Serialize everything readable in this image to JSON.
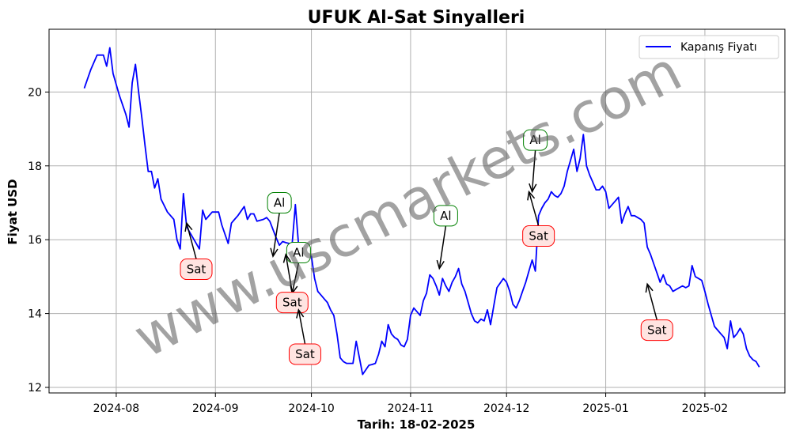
{
  "chart_data": {
    "type": "line",
    "title": "UFUK Al-Sat Sinyalleri",
    "xlabel": "Tarih: 18-02-2025",
    "ylabel": "Fiyat USD",
    "ylim": [
      11.85,
      21.7
    ],
    "yticks": [
      12,
      14,
      16,
      18,
      20
    ],
    "xlim": [
      "2024-07-11",
      "2025-02-26"
    ],
    "xticks": [
      "2024-08",
      "2024-09",
      "2024-10",
      "2024-11",
      "2024-12",
      "2025-01",
      "2025-02"
    ],
    "grid": true,
    "legend_position": "top-right",
    "colors": {
      "line": "#0000ff",
      "buy": "#008000",
      "sell": "#ff0000",
      "buy_fill": "#ffffff",
      "sell_fill": "#ffe4e1",
      "grid": "#b0b0b0"
    },
    "series": [
      {
        "name": "Kapanış Fiyatı",
        "x": [
          "2024-07-22",
          "2024-07-24",
          "2024-07-26",
          "2024-07-28",
          "2024-07-29",
          "2024-07-30",
          "2024-07-31",
          "2024-08-02",
          "2024-08-04",
          "2024-08-05",
          "2024-08-06",
          "2024-08-07",
          "2024-08-08",
          "2024-08-09",
          "2024-08-10",
          "2024-08-11",
          "2024-08-12",
          "2024-08-13",
          "2024-08-14",
          "2024-08-15",
          "2024-08-17",
          "2024-08-19",
          "2024-08-20",
          "2024-08-21",
          "2024-08-22",
          "2024-08-23",
          "2024-08-24",
          "2024-08-26",
          "2024-08-27",
          "2024-08-28",
          "2024-08-29",
          "2024-08-31",
          "2024-09-02",
          "2024-09-03",
          "2024-09-05",
          "2024-09-06",
          "2024-09-07",
          "2024-09-08",
          "2024-09-10",
          "2024-09-11",
          "2024-09-12",
          "2024-09-13",
          "2024-09-14",
          "2024-09-16",
          "2024-09-17",
          "2024-09-18",
          "2024-09-20",
          "2024-09-21",
          "2024-09-22",
          "2024-09-23",
          "2024-09-24",
          "2024-09-25",
          "2024-09-26",
          "2024-09-27",
          "2024-09-28",
          "2024-09-29",
          "2024-09-30",
          "2024-10-01",
          "2024-10-02",
          "2024-10-03",
          "2024-10-04",
          "2024-10-05",
          "2024-10-06",
          "2024-10-07",
          "2024-10-08",
          "2024-10-09",
          "2024-10-10",
          "2024-10-11",
          "2024-10-12",
          "2024-10-14",
          "2024-10-15",
          "2024-10-17",
          "2024-10-19",
          "2024-10-20",
          "2024-10-21",
          "2024-10-22",
          "2024-10-23",
          "2024-10-24",
          "2024-10-25",
          "2024-10-26",
          "2024-10-27",
          "2024-10-28",
          "2024-10-29",
          "2024-10-30",
          "2024-10-31",
          "2024-11-01",
          "2024-11-02",
          "2024-11-04",
          "2024-11-05",
          "2024-11-06",
          "2024-11-07",
          "2024-11-08",
          "2024-11-09",
          "2024-11-10",
          "2024-11-11",
          "2024-11-12",
          "2024-11-13",
          "2024-11-14",
          "2024-11-15",
          "2024-11-16",
          "2024-11-17",
          "2024-11-18",
          "2024-11-19",
          "2024-11-20",
          "2024-11-21",
          "2024-11-22",
          "2024-11-23",
          "2024-11-24",
          "2024-11-25",
          "2024-11-26",
          "2024-11-27",
          "2024-11-28",
          "2024-11-30",
          "2024-12-01",
          "2024-12-02",
          "2024-12-03",
          "2024-12-04",
          "2024-12-05",
          "2024-12-06",
          "2024-12-07",
          "2024-12-08",
          "2024-12-09",
          "2024-12-10",
          "2024-12-11",
          "2024-12-12",
          "2024-12-13",
          "2024-12-14",
          "2024-12-15",
          "2024-12-16",
          "2024-12-17",
          "2024-12-18",
          "2024-12-19",
          "2024-12-20",
          "2024-12-21",
          "2024-12-22",
          "2024-12-23",
          "2024-12-24",
          "2024-12-25",
          "2024-12-26",
          "2024-12-27",
          "2024-12-28",
          "2024-12-29",
          "2024-12-30",
          "2024-12-31",
          "2025-01-01",
          "2025-01-02",
          "2025-01-03",
          "2025-01-04",
          "2025-01-05",
          "2025-01-06",
          "2025-01-07",
          "2025-01-08",
          "2025-01-09",
          "2025-01-10",
          "2025-01-11",
          "2025-01-12",
          "2025-01-13",
          "2025-01-14",
          "2025-01-15",
          "2025-01-16",
          "2025-01-17",
          "2025-01-18",
          "2025-01-19",
          "2025-01-20",
          "2025-01-21",
          "2025-01-22",
          "2025-01-23",
          "2025-01-24",
          "2025-01-25",
          "2025-01-26",
          "2025-01-27",
          "2025-01-28",
          "2025-01-29",
          "2025-01-30",
          "2025-01-31",
          "2025-02-01",
          "2025-02-02",
          "2025-02-03",
          "2025-02-04",
          "2025-02-05",
          "2025-02-06",
          "2025-02-07",
          "2025-02-08",
          "2025-02-09",
          "2025-02-10",
          "2025-02-11",
          "2025-02-12",
          "2025-02-13",
          "2025-02-14",
          "2025-02-15",
          "2025-02-16",
          "2025-02-17",
          "2025-02-18"
        ],
        "values": [
          20.1,
          20.6,
          21.0,
          21.0,
          20.7,
          21.2,
          20.5,
          19.9,
          19.4,
          19.05,
          20.25,
          20.75,
          20.0,
          19.3,
          18.55,
          17.85,
          17.85,
          17.4,
          17.65,
          17.1,
          16.75,
          16.55,
          16.0,
          15.75,
          17.25,
          16.35,
          16.2,
          15.9,
          15.75,
          16.8,
          16.55,
          16.75,
          16.75,
          16.4,
          15.9,
          16.45,
          16.55,
          16.65,
          16.9,
          16.55,
          16.7,
          16.7,
          16.5,
          16.55,
          16.6,
          16.5,
          16.05,
          15.85,
          15.95,
          15.92,
          15.9,
          15.9,
          16.95,
          15.85,
          15.55,
          15.55,
          15.55,
          15.55,
          14.95,
          14.6,
          14.5,
          14.4,
          14.3,
          14.1,
          13.95,
          13.45,
          12.8,
          12.7,
          12.65,
          12.65,
          13.25,
          12.35,
          12.6,
          12.62,
          12.65,
          12.9,
          13.25,
          13.1,
          13.7,
          13.45,
          13.35,
          13.3,
          13.15,
          13.1,
          13.3,
          13.95,
          14.15,
          13.95,
          14.35,
          14.55,
          15.05,
          14.95,
          14.75,
          14.5,
          14.95,
          14.75,
          14.6,
          14.85,
          15.0,
          15.22,
          14.8,
          14.6,
          14.3,
          14.0,
          13.8,
          13.75,
          13.85,
          13.8,
          14.1,
          13.7,
          14.2,
          14.7,
          14.95,
          14.85,
          14.6,
          14.25,
          14.15,
          14.35,
          14.6,
          14.85,
          15.15,
          15.45,
          15.15,
          16.65,
          16.85,
          17.0,
          17.1,
          17.3,
          17.2,
          17.15,
          17.25,
          17.45,
          17.85,
          18.15,
          18.45,
          17.85,
          18.2,
          18.85,
          18.0,
          17.75,
          17.55,
          17.35,
          17.35,
          17.45,
          17.3,
          16.85,
          16.95,
          17.05,
          17.15,
          16.45,
          16.7,
          16.9,
          16.65,
          16.65,
          16.6,
          16.55,
          16.45,
          15.8,
          15.6,
          15.35,
          15.1,
          14.85,
          15.05,
          14.8,
          14.75,
          14.6,
          14.65,
          14.7,
          14.75,
          14.7,
          14.75,
          15.3,
          15.0,
          14.95,
          14.9,
          14.6,
          14.25,
          13.95,
          13.65,
          13.55,
          13.45,
          13.35,
          13.05,
          13.8,
          13.35,
          13.45,
          13.6,
          13.45,
          13.05,
          12.85,
          12.75,
          12.7,
          12.55
        ]
      }
    ],
    "signals": [
      {
        "type": "sell",
        "label": "Sat",
        "x": "2024-08-23",
        "y": 16.45,
        "text_x": "2024-08-26",
        "text_y": 15.2
      },
      {
        "type": "buy",
        "label": "Al",
        "x": "2024-09-19",
        "y": 15.55,
        "text_x": "2024-09-21",
        "text_y": 17.0
      },
      {
        "type": "buy",
        "label": "Al",
        "x": "2024-09-25",
        "y": 14.55,
        "text_x": "2024-09-27",
        "text_y": 15.65
      },
      {
        "type": "sell",
        "label": "Sat",
        "x": "2024-09-23",
        "y": 15.6,
        "text_x": "2024-09-25",
        "text_y": 14.3
      },
      {
        "type": "sell",
        "label": "Sat",
        "x": "2024-09-27",
        "y": 14.1,
        "text_x": "2024-09-29",
        "text_y": 12.9
      },
      {
        "type": "buy",
        "label": "Al",
        "x": "2024-11-10",
        "y": 15.22,
        "text_x": "2024-11-12",
        "text_y": 16.65
      },
      {
        "type": "buy",
        "label": "Al",
        "x": "2024-12-09",
        "y": 17.3,
        "text_x": "2024-12-10",
        "text_y": 18.7
      },
      {
        "type": "sell",
        "label": "Sat",
        "x": "2024-12-08",
        "y": 17.3,
        "text_x": "2024-12-11",
        "text_y": 16.1
      },
      {
        "type": "sell",
        "label": "Sat",
        "x": "2025-01-14",
        "y": 14.8,
        "text_x": "2025-01-17",
        "text_y": 13.55
      }
    ]
  },
  "watermark": "www.uscmarkets.com"
}
